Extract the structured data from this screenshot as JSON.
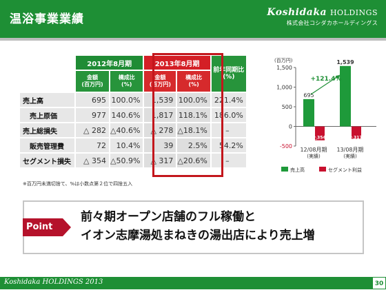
{
  "header": {
    "title": "温浴事業業績",
    "brand_name": "Koshidaka",
    "brand_suffix": "HOLDINGS",
    "brand_sub": "株式会社コシダカホールディングス"
  },
  "table": {
    "period_a": "2012年8月期",
    "period_b": "2013年8月期",
    "yoy_header": "前年同期比\n(%)",
    "sub_amount": "金額\n(百万円)",
    "sub_ratio": "構成比\n(%)",
    "rows": [
      {
        "label": "売上高",
        "a_amt": "695",
        "a_ratio": "100.0%",
        "b_amt": "1,539",
        "b_ratio": "100.0%",
        "yoy": "221.4%"
      },
      {
        "label": "売上原価",
        "a_amt": "977",
        "a_ratio": "140.6%",
        "b_amt": "1,817",
        "b_ratio": "118.1%",
        "yoy": "186.0%"
      },
      {
        "label": "売上総損失",
        "a_amt": "△ 282",
        "a_ratio": "△40.6%",
        "b_amt": "△ 278",
        "b_ratio": "△18.1%",
        "yoy": "–"
      },
      {
        "label": "販売管理費",
        "a_amt": "72",
        "a_ratio": "10.4%",
        "b_amt": "39",
        "b_ratio": "2.5%",
        "yoy": "54.2%"
      },
      {
        "label": "セグメント損失",
        "a_amt": "△ 354",
        "a_ratio": "△50.9%",
        "b_amt": "△ 317",
        "b_ratio": "△20.6%",
        "yoy": "–"
      }
    ],
    "note": "※百万円未満切捨て、%は小数点第２位で四捨五入"
  },
  "chart_data": {
    "type": "bar",
    "ylabel": "(百万円)",
    "ylim": [
      -500,
      1500
    ],
    "ticks": [
      "1,500",
      "1,000",
      "500",
      "0",
      "-500"
    ],
    "categories": [
      "12/08月期\n(実績)",
      "13/08月期\n(実績)"
    ],
    "series": [
      {
        "name": "売上高",
        "color": "#1e9a3a",
        "values": [
          695,
          1539
        ],
        "labels": [
          "695",
          "1,539"
        ]
      },
      {
        "name": "セグメント利益",
        "color": "#c8102e",
        "values": [
          -354,
          -317
        ],
        "labels": [
          "△354",
          "△317"
        ]
      }
    ],
    "annotation": "+121.4%",
    "legend_position": "bottom"
  },
  "point": {
    "tag": "Point",
    "line1": "前々期オープン店舗のフル稼働と",
    "line2": "イオン志摩湯処まねきの湯出店により売上増"
  },
  "footer": {
    "brand": "Koshidaka HOLDINGS 2013",
    "page": "30"
  }
}
